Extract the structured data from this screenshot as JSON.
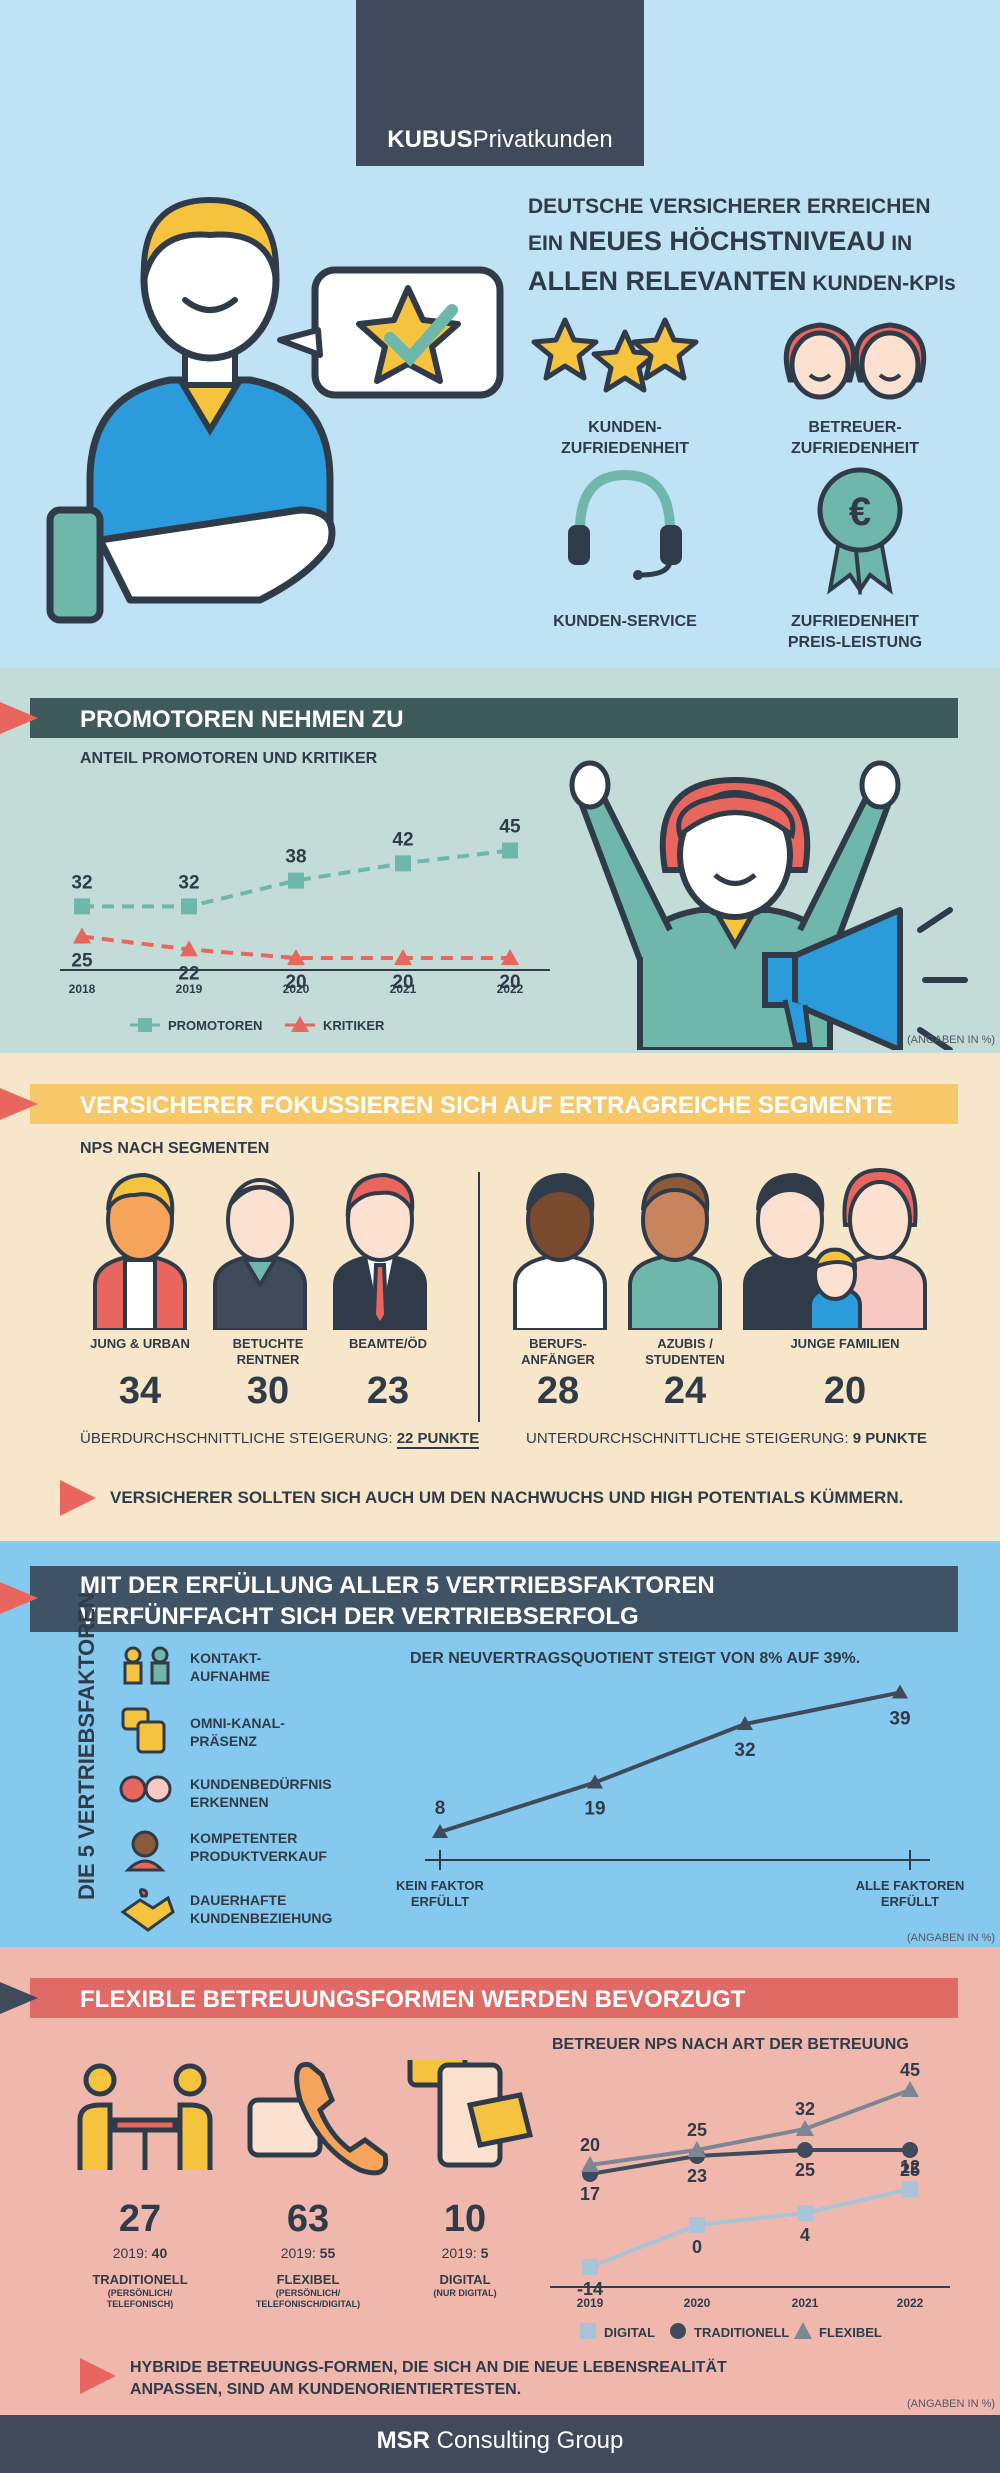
{
  "brand": {
    "bold": "KUBUS",
    "rest": "Privatkunden"
  },
  "headline": {
    "line1": "DEUTSCHE VERSICHERER ERREICHEN",
    "line2_pre": "EIN ",
    "line2_big": "NEUES HÖCHSTNIVEAU",
    "line2_post": " IN",
    "line3_big": "ALLEN RELEVANTEN",
    "line3_post": " KUNDEN-KPIs"
  },
  "kpis": [
    {
      "label": "KUNDEN-\nZUFRIEDENHEIT",
      "icon": "three-stars-icon"
    },
    {
      "label": "BETREUER-\nZUFRIEDENHEIT",
      "icon": "advisors-icon"
    },
    {
      "label": "KUNDEN-SERVICE",
      "icon": "headset-icon"
    },
    {
      "label": "ZUFRIEDENHEIT\nPREIS-LEISTUNG",
      "icon": "euro-rosette-icon"
    }
  ],
  "promoters": {
    "title": "PROMOTOREN NEHMEN ZU",
    "subtitle": "ANTEIL PROMOTOREN UND KRITIKER",
    "note": "(ANGABEN IN %)",
    "chart_data": {
      "type": "line",
      "x": [
        "2018",
        "2019",
        "2020",
        "2021",
        "2022"
      ],
      "series": [
        {
          "name": "PROMOTOREN",
          "values": [
            32,
            32,
            38,
            42,
            45
          ],
          "color": "#6fb7aa"
        },
        {
          "name": "KRITIKER",
          "values": [
            25,
            22,
            20,
            20,
            20
          ],
          "color": "#e8665e"
        }
      ],
      "legend": "bottom"
    }
  },
  "segments": {
    "title": "VERSICHERER FOKUSSIEREN SICH AUF ERTRAGREICHE SEGMENTE",
    "subtitle": "NPS NACH SEGMENTEN",
    "items": [
      {
        "name": "JUNG & URBAN",
        "value": "34"
      },
      {
        "name": "BETUCHTE\nRENTNER",
        "value": "30"
      },
      {
        "name": "BEAMTE/ÖD",
        "value": "23"
      },
      {
        "name": "BERUFS-\nANFÄNGER",
        "value": "28"
      },
      {
        "name": "AZUBIS /\nSTUDENTEN",
        "value": "24"
      },
      {
        "name": "JUNGE FAMILIEN",
        "value": "20"
      }
    ],
    "above_text": "ÜBERDURCHSCHNITTLICHE STEIGERUNG: ",
    "above_value": "22 PUNKTE",
    "below_text": "UNTERDURCHSCHNITTLICHE STEIGERUNG: ",
    "below_value": "9 PUNKTE",
    "callout": "VERSICHERER SOLLTEN SICH AUCH UM DEN NACHWUCHS UND HIGH POTENTIALS KÜMMERN."
  },
  "sales": {
    "title_line1": "MIT DER ERFÜLLUNG ALLER 5 VERTRIEBSFAKTOREN",
    "title_line2": "VERFÜNFFACHT SICH DER VERTRIEBSERFOLG",
    "vertical_label": "DIE 5 VERTRIEBSFAKTOREN",
    "factors": [
      {
        "label": "KONTAKT-\nAUFNAHME",
        "icon": "contact-icon"
      },
      {
        "label": "OMNI-KANAL-\nPRÄSENZ",
        "icon": "omnichannel-icon"
      },
      {
        "label": "KUNDENBEDÜRFNIS\nERKENNEN",
        "icon": "needs-icon"
      },
      {
        "label": "KOMPETENTER\nPRODUKTVERKAUF",
        "icon": "advisor-icon"
      },
      {
        "label": "DAUERHAFTE\nKUNDENBEZIEHUNG",
        "icon": "handshake-icon"
      }
    ],
    "chart_title": "DER NEUVERTRAGSQUOTIENT STEIGT VON 8% AUF 39%.",
    "chart_data": {
      "type": "line",
      "values": [
        8,
        19,
        32,
        39
      ],
      "start_label": "KEIN FAKTOR\nERFÜLLT",
      "end_label": "ALLE FAKTOREN\nERFÜLLT"
    },
    "note": "(ANGABEN IN %)"
  },
  "care": {
    "title": "FLEXIBLE BETREUUNGSFORMEN WERDEN BEVORZUGT",
    "modes": [
      {
        "value": "27",
        "prev_label": "2019: ",
        "prev": "40",
        "name": "TRADITIONELL",
        "sub": "(PERSÖNLICH/\nTELEFONISCH)"
      },
      {
        "value": "63",
        "prev_label": "2019: ",
        "prev": "55",
        "name": "FLEXIBEL",
        "sub": "(PERSÖNLICH/\nTELEFONISCH/DIGITAL)"
      },
      {
        "value": "10",
        "prev_label": "2019: ",
        "prev": "5",
        "name": "DIGITAL",
        "sub": "(NUR DIGITAL)"
      }
    ],
    "chart_title": "BETREUER NPS NACH ART DER BETREUUNG",
    "chart_data": {
      "type": "line",
      "x": [
        "2019",
        "2020",
        "2021",
        "2022"
      ],
      "series": [
        {
          "name": "DIGITAL",
          "values": [
            -14,
            0,
            4,
            12
          ],
          "color": "#a9c3d8"
        },
        {
          "name": "TRADITIONELL",
          "values": [
            17,
            23,
            25,
            25
          ],
          "color": "#3f4b5a"
        },
        {
          "name": "FLEXIBEL",
          "values": [
            20,
            25,
            32,
            45
          ],
          "color": "#7d8794"
        }
      ],
      "legend": "bottom"
    },
    "callout": "HYBRIDE BETREUUNGS-FORMEN, DIE SICH AN DIE NEUE LEBENSREALITÄT\nANPASSEN, SIND AM KUNDENORIENTIERTESTEN.",
    "note": "(ANGABEN IN %)"
  },
  "footer": {
    "bold": "MSR",
    "rest": " Consulting Group"
  }
}
